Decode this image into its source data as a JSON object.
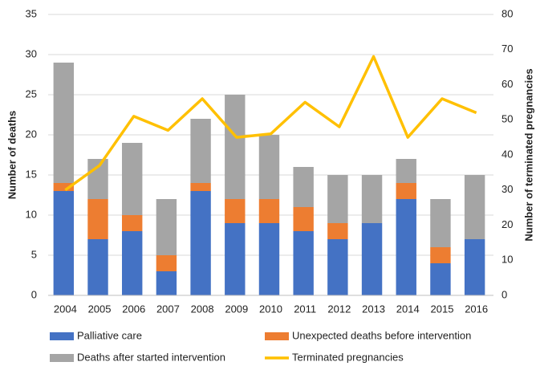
{
  "chart_data": {
    "type": "stacked-bar-line",
    "categories": [
      "2004",
      "2005",
      "2006",
      "2007",
      "2008",
      "2009",
      "2010",
      "2011",
      "2012",
      "2013",
      "2014",
      "2015",
      "2016"
    ],
    "series": [
      {
        "name": "Palliative care",
        "color": "#4472c4",
        "values": [
          13,
          7,
          8,
          3,
          13,
          9,
          9,
          8,
          7,
          9,
          12,
          4,
          7
        ]
      },
      {
        "name": "Unexpected deaths before intervention",
        "color": "#ed7d31",
        "values": [
          1,
          5,
          2,
          2,
          1,
          3,
          3,
          3,
          2,
          0,
          2,
          2,
          0
        ]
      },
      {
        "name": "Deaths after started intervention",
        "color": "#a5a5a5",
        "values": [
          15,
          5,
          9,
          7,
          8,
          13,
          8,
          5,
          6,
          6,
          3,
          6,
          8
        ]
      },
      {
        "name": "Terminated pregnancies",
        "color": "#ffc000",
        "axis": "y2",
        "values": [
          30,
          37,
          51,
          47,
          56,
          45,
          46,
          55,
          48,
          68,
          45,
          56,
          52
        ]
      }
    ],
    "ylabel": "Number of deaths",
    "y2label": "Number of terminated pregnancies",
    "ylim": [
      0,
      35
    ],
    "yticks": [
      0,
      5,
      10,
      15,
      20,
      25,
      30,
      35
    ],
    "y2lim": [
      0,
      80
    ],
    "y2ticks": [
      0,
      10,
      20,
      30,
      40,
      50,
      60,
      70,
      80
    ],
    "grid": true,
    "legend": "bottom"
  }
}
